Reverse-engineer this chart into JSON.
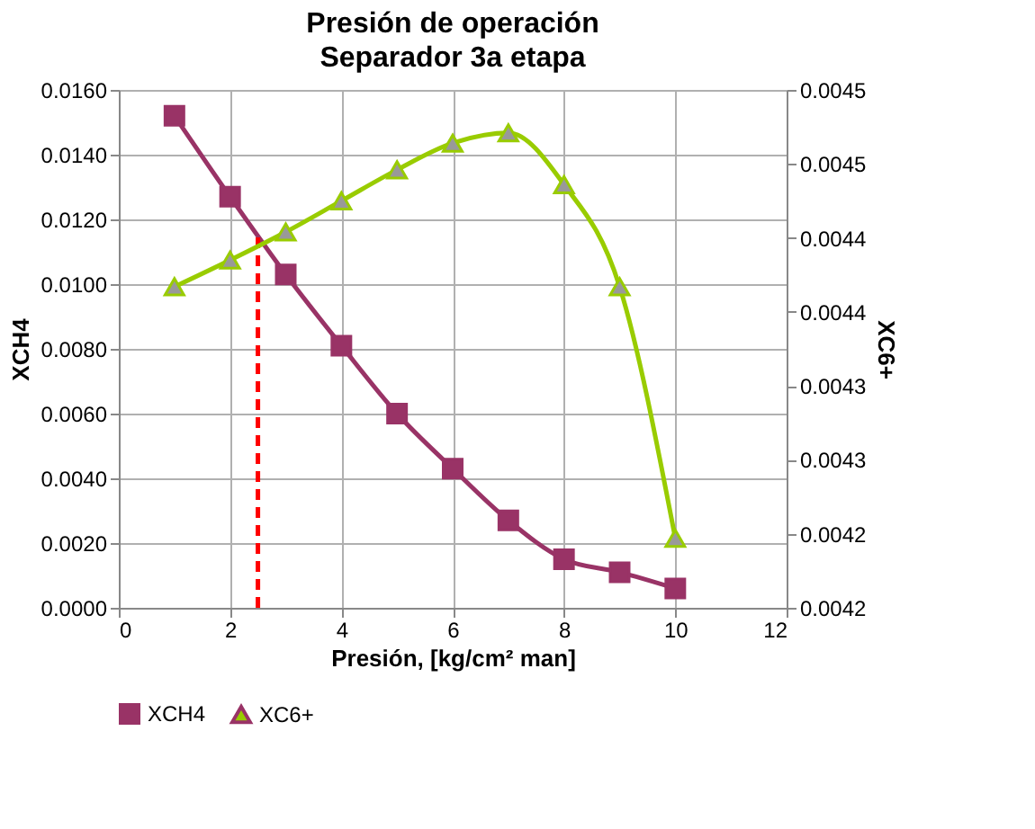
{
  "chart_data": {
    "type": "line",
    "title": "Presión de operación",
    "subtitle": "Separador 3a etapa",
    "xlabel": "Presión, [kg/cm² man]",
    "ylabel": "XCH4",
    "y2label": "XC6+",
    "x": [
      1,
      2,
      3,
      4,
      5,
      6,
      7,
      8,
      9,
      10
    ],
    "series": [
      {
        "name": "XCH4",
        "color": "#993366",
        "marker": "square",
        "values": [
          0.0152,
          0.0127,
          0.0103,
          0.0081,
          0.006,
          0.0043,
          0.0027,
          0.0015,
          0.0011,
          0.0006
        ]
      },
      {
        "name": "XC6+",
        "color": "#99cc00",
        "marker": "triangle",
        "axis": "y2",
        "values": [
          0.004417,
          0.004435,
          0.004454,
          0.004475,
          0.004496,
          0.004514,
          0.004521,
          0.004486,
          0.004417,
          0.004247
        ]
      }
    ],
    "xlim": [
      0,
      12
    ],
    "xticks": [
      0,
      2,
      4,
      6,
      8,
      10,
      12
    ],
    "ylim": [
      0,
      0.016
    ],
    "yticks": [
      {
        "value": 0,
        "label": "0.0000"
      },
      {
        "value": 0.002,
        "label": "0.0020"
      },
      {
        "value": 0.004,
        "label": "0.0040"
      },
      {
        "value": 0.006,
        "label": "0.0060"
      },
      {
        "value": 0.008,
        "label": "0.0080"
      },
      {
        "value": 0.01,
        "label": "0.0100"
      },
      {
        "value": 0.012,
        "label": "0.0120"
      },
      {
        "value": 0.014,
        "label": "0.0140"
      },
      {
        "value": 0.016,
        "label": "0.0160"
      }
    ],
    "y2lim": [
      0.0042,
      0.00455
    ],
    "y2ticks": [
      {
        "value": 0.0042,
        "label": "0.0042"
      },
      {
        "value": 0.00425,
        "label": "0.0042"
      },
      {
        "value": 0.0043,
        "label": "0.0043"
      },
      {
        "value": 0.00435,
        "label": "0.0043"
      },
      {
        "value": 0.0044,
        "label": "0.0044"
      },
      {
        "value": 0.00445,
        "label": "0.0044"
      },
      {
        "value": 0.0045,
        "label": "0.0045"
      },
      {
        "value": 0.00455,
        "label": "0.0045"
      }
    ],
    "ref_lines": [
      {
        "axis": "x",
        "value": 2.5,
        "color": "#ff0000",
        "line_style": "dashed"
      }
    ],
    "grid": true,
    "legend": "bottom",
    "line_style": "solid"
  }
}
